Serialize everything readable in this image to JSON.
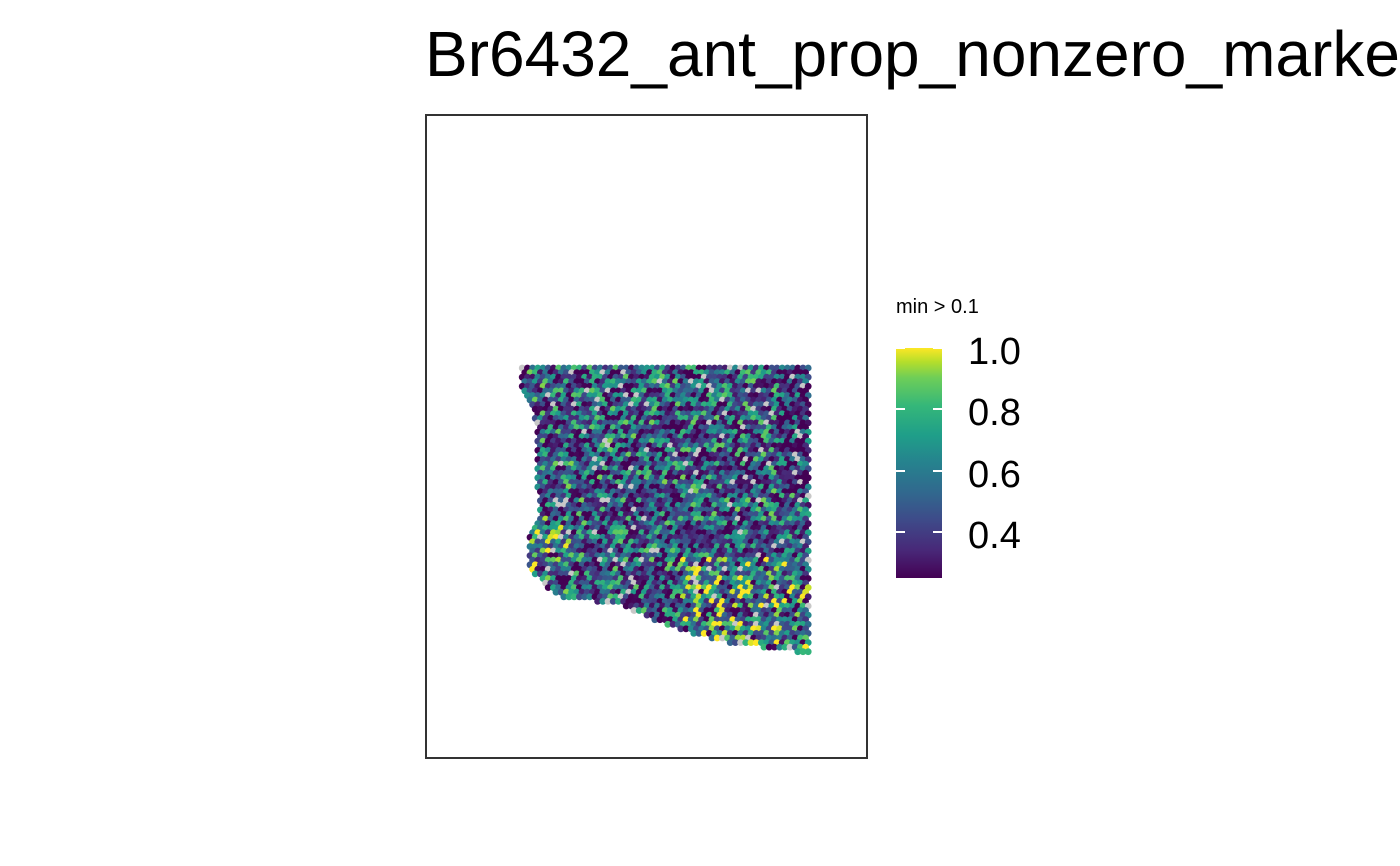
{
  "chart_data": {
    "type": "scatter",
    "title": "Br6432_ant_prop_nonzero_marke",
    "legend": {
      "title": "min > 0.1",
      "placement": "right",
      "ticks": [
        "1.0",
        "0.8",
        "0.6",
        "0.4"
      ],
      "range": [
        0.25,
        1.0
      ],
      "colormap": "viridis"
    },
    "na_color": "#c8c8c8",
    "colors": {
      "low": "#440154",
      "mid": "#21908d",
      "high": "#fde725",
      "panel_border": "#333333"
    }
  }
}
